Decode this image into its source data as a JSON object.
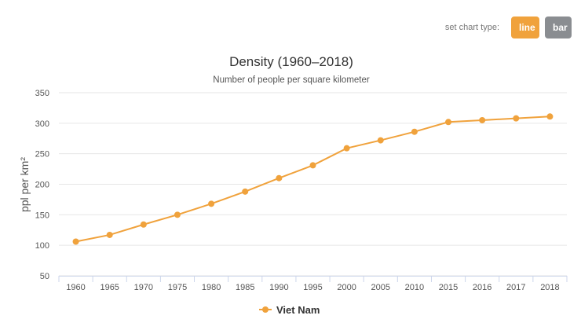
{
  "controls": {
    "label": "set chart type:",
    "line_label": "line",
    "bar_label": "bar"
  },
  "colors": {
    "series": "#f0a23c",
    "grid": "#e6e6e6"
  },
  "chart_data": {
    "type": "line",
    "title": "Density (1960–2018)",
    "subtitle": "Number of people per square kilometer",
    "ylabel": "ppl per km²",
    "xlabel": "",
    "categories": [
      "1960",
      "1965",
      "1970",
      "1975",
      "1980",
      "1985",
      "1990",
      "1995",
      "2000",
      "2005",
      "2010",
      "2015",
      "2016",
      "2017",
      "2018"
    ],
    "series": [
      {
        "name": "Viet Nam",
        "values": [
          106,
          117,
          134,
          150,
          168,
          188,
          210,
          231,
          259,
          272,
          286,
          302,
          305,
          308,
          311
        ]
      }
    ],
    "ylim": [
      50,
      350
    ],
    "yticks": [
      50,
      100,
      150,
      200,
      250,
      300,
      350
    ],
    "grid": true,
    "legend_position": "bottom"
  }
}
